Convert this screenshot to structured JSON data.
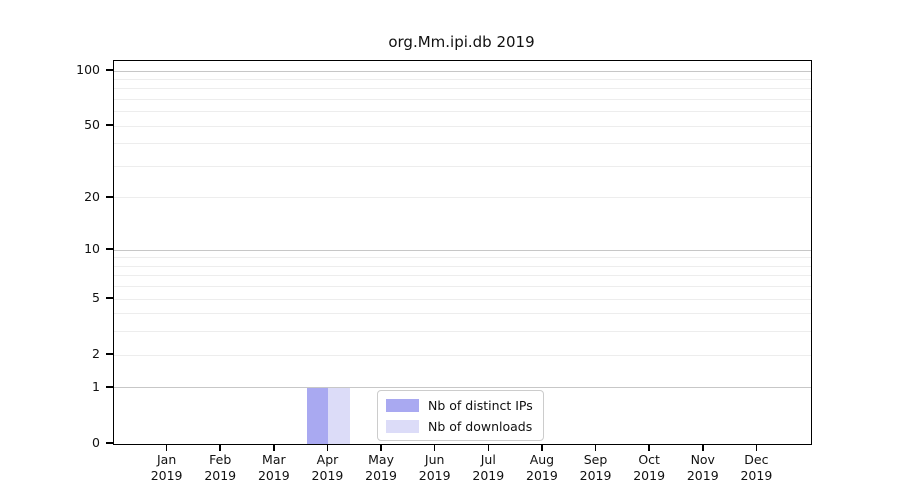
{
  "colors": {
    "distinct_ips_bar": "#a9a9f1",
    "downloads_bar": "#dcdcf8",
    "axis": "#000000",
    "grid_major": "#c7c7c7",
    "grid_minor": "#ededed",
    "text": "#111111",
    "legend_border": "#cccccc"
  },
  "chart_data": {
    "type": "bar",
    "title": "org.Mm.ipi.db 2019",
    "months": [
      "Jan",
      "Feb",
      "Mar",
      "Apr",
      "May",
      "Jun",
      "Jul",
      "Aug",
      "Sep",
      "Oct",
      "Nov",
      "Dec"
    ],
    "year": "2019",
    "categories": [
      "Jan 2019",
      "Feb 2019",
      "Mar 2019",
      "Apr 2019",
      "May 2019",
      "Jun 2019",
      "Jul 2019",
      "Aug 2019",
      "Sep 2019",
      "Oct 2019",
      "Nov 2019",
      "Dec 2019"
    ],
    "series": [
      {
        "name": "Nb of distinct IPs",
        "values": [
          0,
          0,
          0,
          1,
          0,
          0,
          0,
          0,
          0,
          0,
          0,
          0
        ]
      },
      {
        "name": "Nb of downloads",
        "values": [
          0,
          0,
          0,
          1,
          0,
          0,
          0,
          0,
          0,
          0,
          0,
          0
        ]
      }
    ],
    "xlabel": "",
    "ylabel": "",
    "yscale": "log10(1+v)",
    "yticks": [
      0,
      1,
      2,
      5,
      10,
      20,
      50,
      100
    ],
    "grid_major_values": [
      1,
      10,
      100
    ],
    "grid_minor_values": [
      2,
      3,
      4,
      5,
      6,
      7,
      8,
      9,
      20,
      30,
      40,
      50,
      60,
      70,
      80,
      90
    ],
    "ylim": [
      0,
      113
    ],
    "grid": "horizontal",
    "legend_position": "lower-center"
  }
}
